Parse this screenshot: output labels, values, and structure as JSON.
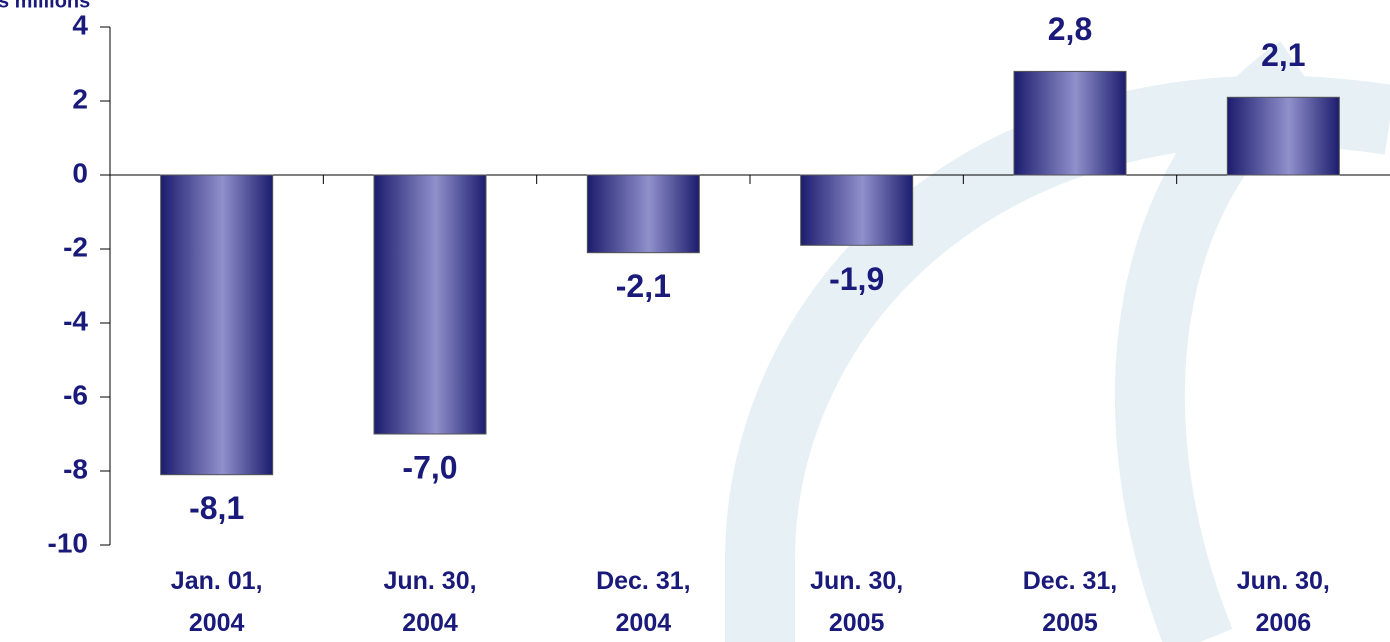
{
  "chart_data": {
    "type": "bar",
    "y_label": "s millions",
    "categories": [
      "Jan. 01, 2004",
      "Jun. 30, 2004",
      "Dec. 31, 2004",
      "Jun. 30, 2005",
      "Dec. 31, 2005",
      "Jun. 30, 2006"
    ],
    "values": [
      -8.1,
      -7.0,
      -2.1,
      -1.9,
      2.8,
      2.1
    ],
    "value_labels": [
      "-8,1",
      "-7,0",
      "-2,1",
      "-1,9",
      "2,8",
      "2,1"
    ],
    "color": "#1c1c6e",
    "ylim": [
      -10,
      4
    ],
    "yticks": [
      4,
      2,
      0,
      -2,
      -4,
      -6,
      -8,
      -10
    ]
  }
}
